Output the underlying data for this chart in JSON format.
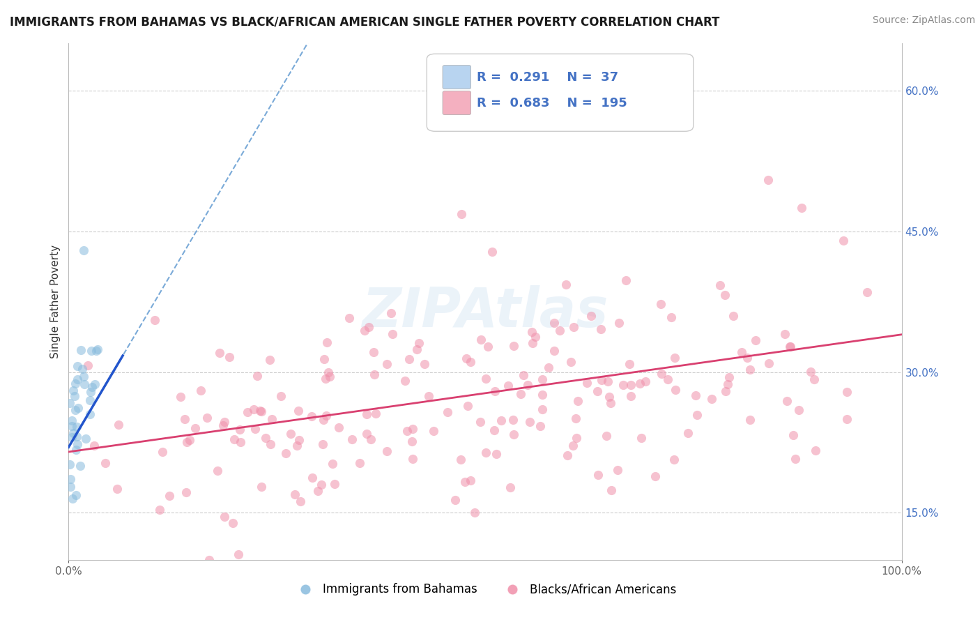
{
  "title": "IMMIGRANTS FROM BAHAMAS VS BLACK/AFRICAN AMERICAN SINGLE FATHER POVERTY CORRELATION CHART",
  "source": "Source: ZipAtlas.com",
  "ylabel": "Single Father Poverty",
  "xlim": [
    0.0,
    1.0
  ],
  "ylim": [
    0.1,
    0.65
  ],
  "y_ticks": [
    0.15,
    0.3,
    0.45,
    0.6
  ],
  "y_tick_labels": [
    "15.0%",
    "30.0%",
    "45.0%",
    "60.0%"
  ],
  "legend_box": {
    "R1": "0.291",
    "N1": "37",
    "R2": "0.683",
    "N2": "195",
    "color1": "#b8d4f0",
    "color2": "#f4b0c0",
    "text_color": "#4472c4"
  },
  "background_color": "#ffffff",
  "grid_color": "#cccccc",
  "title_color": "#1a1a1a",
  "blue_line_color": "#2255cc",
  "blue_dash_color": "#7aaad8",
  "pink_line_color": "#d94070",
  "blue_dot_color": "#88bbdd",
  "pink_dot_color": "#f090aa",
  "dot_alpha": 0.55,
  "dot_size": 90,
  "blue_scatter_seed": 42,
  "pink_scatter_seed": 123
}
